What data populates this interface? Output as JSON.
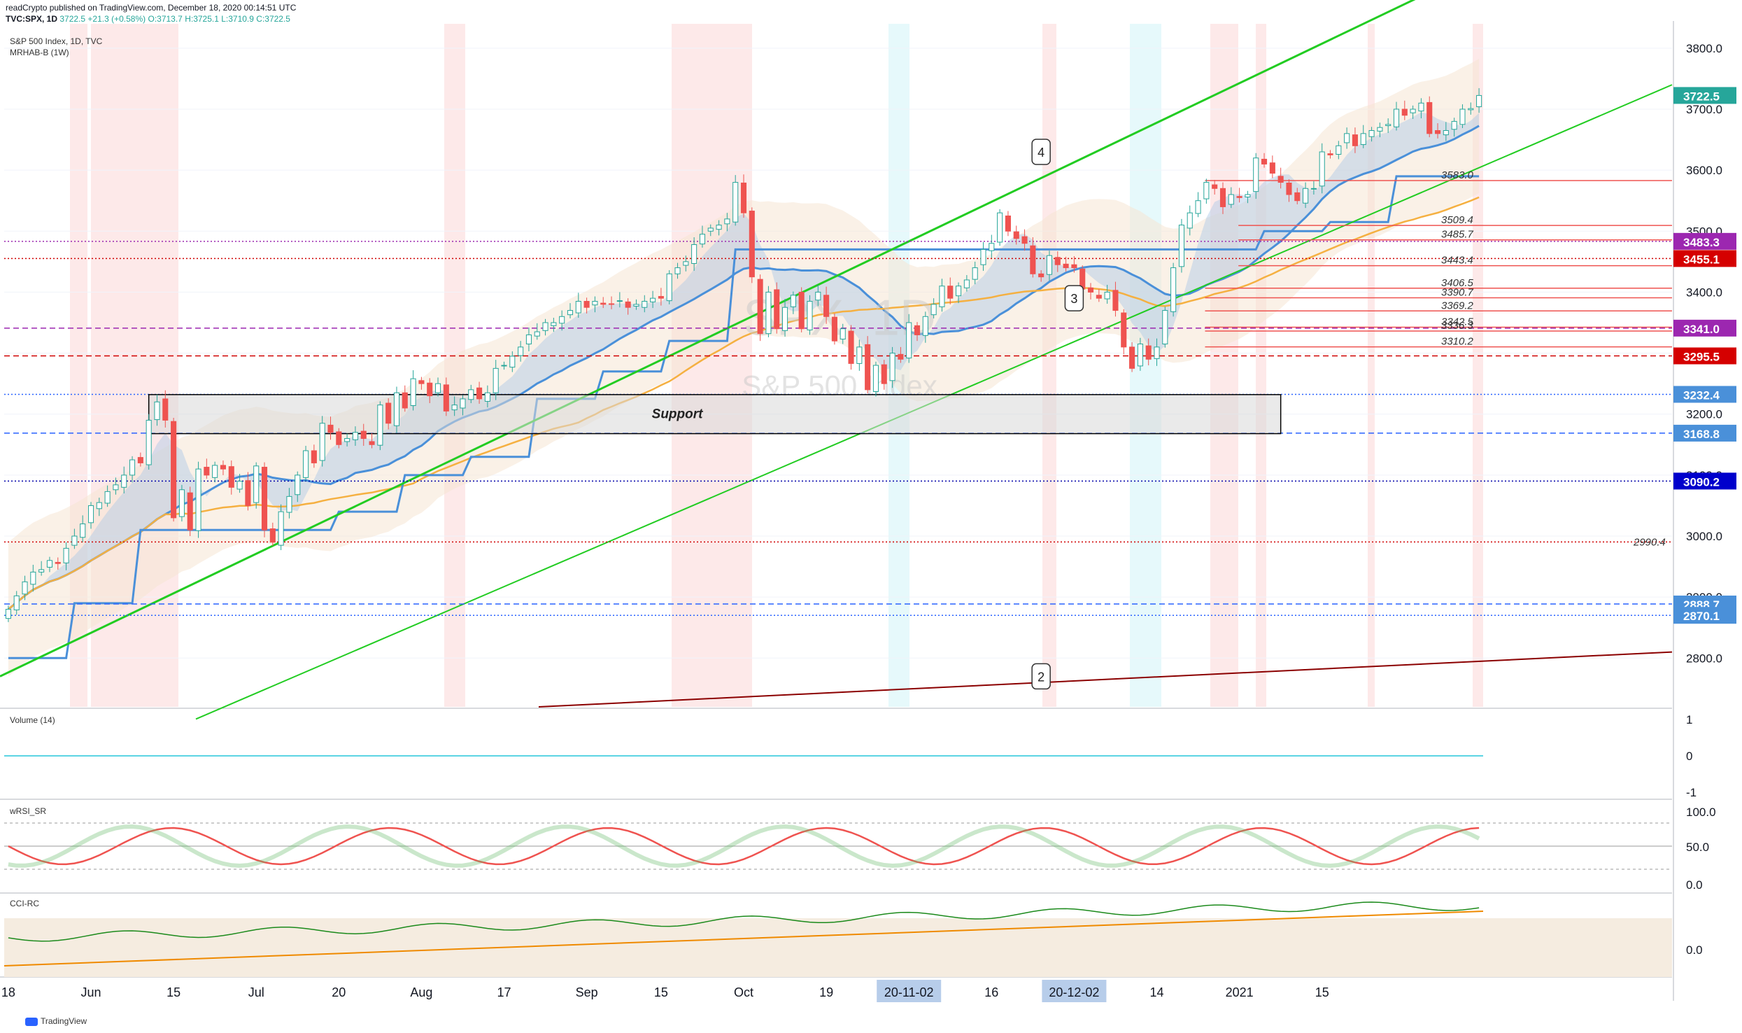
{
  "header": {
    "line1": "readCrypto published on TradingView.com, December 18, 2020 00:14:51 UTC",
    "symbol": "TVC:SPX, 1D",
    "last": "3722.5",
    "change": "+21.3 (+0.58%)",
    "ohlc": "O:3713.7 H:3725.1 L:3710.9 C:3722.5"
  },
  "chart_title": "S&P 500 Index, 1D, TVC",
  "indicator_main": "MRHAB-B (1W)",
  "watermark_symbol": "SPX, 1D",
  "watermark_name": "S&P 500 Index",
  "panes": {
    "volume": "Volume (14)",
    "rsi": "wRSI_SR",
    "cci": "CCI-RC"
  },
  "footer_brand": "TradingView",
  "colors": {
    "up": "#26a69a",
    "down": "#ef5350",
    "blue_line": "#4a90d9",
    "orange_line": "#f5b041",
    "purple_line": "#9b59b6",
    "trend_green": "#22cc22",
    "trend_red": "#8b0000"
  },
  "chart_data": {
    "type": "candlestick",
    "ylim": [
      2720,
      3840
    ],
    "price_ticks": [
      2800,
      2900,
      3000,
      3100,
      3200,
      3300,
      3400,
      3500,
      3600,
      3700,
      3800
    ],
    "price_tick_labels": [
      "2800.0",
      "2900.0",
      "3000.0",
      "3100.0",
      "3200.0",
      "3300.0",
      "3400.0",
      "3500.0",
      "3600.0",
      "3700.0",
      "3800.0"
    ],
    "x_ticks": [
      "18",
      "Jun",
      "15",
      "Jul",
      "20",
      "Aug",
      "17",
      "Sep",
      "15",
      "Oct",
      "19",
      "20-11-02",
      "16",
      "20-12-02",
      "14",
      "2021",
      "15"
    ],
    "x_tick_positions": [
      0,
      10,
      20,
      30,
      40,
      50,
      60,
      70,
      79,
      89,
      99,
      109,
      119,
      129,
      139,
      149,
      159
    ],
    "closes": [
      2880,
      2902,
      2925,
      2941,
      2945,
      2960,
      2955,
      2980,
      3000,
      3020,
      3050,
      3055,
      3073,
      3084,
      3100,
      3125,
      3120,
      3190,
      3220,
      3190,
      3030,
      3076,
      3010,
      3110,
      3100,
      3116,
      3110,
      3080,
      3090,
      3050,
      3115,
      3010,
      2990,
      3040,
      3065,
      3100,
      3140,
      3120,
      3185,
      3170,
      3150,
      3160,
      3170,
      3160,
      3150,
      3215,
      3185,
      3235,
      3210,
      3258,
      3250,
      3230,
      3250,
      3205,
      3215,
      3225,
      3240,
      3225,
      3235,
      3275,
      3280,
      3295,
      3310,
      3330,
      3335,
      3350,
      3350,
      3360,
      3370,
      3385,
      3375,
      3385,
      3380,
      3380,
      3386,
      3375,
      3380,
      3385,
      3390,
      3390,
      3430,
      3440,
      3450,
      3478,
      3495,
      3505,
      3510,
      3520,
      3580,
      3530,
      3425,
      3332,
      3400,
      3340,
      3375,
      3395,
      3340,
      3385,
      3400,
      3360,
      3320,
      3340,
      3283,
      3310,
      3240,
      3280,
      3250,
      3300,
      3290,
      3350,
      3330,
      3360,
      3380,
      3410,
      3390,
      3410,
      3420,
      3440,
      3470,
      3480,
      3530,
      3500,
      3488,
      3480,
      3430,
      3425,
      3460,
      3445,
      3440,
      3440,
      3405,
      3400,
      3390,
      3400,
      3370,
      3310,
      3275,
      3315,
      3290,
      3310,
      3370,
      3440,
      3510,
      3530,
      3550,
      3580,
      3570,
      3540,
      3560,
      3555,
      3560,
      3620,
      3610,
      3595,
      3580,
      3560,
      3550,
      3570,
      3570,
      3630,
      3625,
      3640,
      3660,
      3640,
      3660,
      3665,
      3670,
      3675,
      3700,
      3690,
      3700,
      3710,
      3660,
      3660,
      3665,
      3680,
      3700,
      3701,
      3722.5
    ],
    "horizontal_levels": [
      {
        "value": 3722.5,
        "label": "3722.5",
        "color": "#26a69a",
        "style": "none"
      },
      {
        "value": 3583.0,
        "label": "3583.0",
        "color": "#ef5350",
        "style": "solid",
        "from": 0.72
      },
      {
        "value": 3509.4,
        "label": "3509.4",
        "color": "#ef5350",
        "style": "solid",
        "from": 0.74
      },
      {
        "value": 3485.7,
        "label": "3485.7",
        "color": "#ef5350",
        "style": "solid",
        "from": 0.74
      },
      {
        "value": 3483.3,
        "label": "3483.3",
        "color": "#9c27b0",
        "style": "dotted",
        "from": 0
      },
      {
        "value": 3455.1,
        "label": "3455.1",
        "color": "#d00000",
        "style": "dotted",
        "from": 0
      },
      {
        "value": 3443.4,
        "label": "3443.4",
        "color": "#ef5350",
        "style": "solid",
        "from": 0.74
      },
      {
        "value": 3406.5,
        "label": "3406.5",
        "color": "#ef5350",
        "style": "solid",
        "from": 0.72
      },
      {
        "value": 3390.7,
        "label": "3390.7",
        "color": "#ef5350",
        "style": "solid",
        "from": 0.72
      },
      {
        "value": 3369.2,
        "label": "3369.2",
        "color": "#ef5350",
        "style": "solid",
        "from": 0.72
      },
      {
        "value": 3342.5,
        "label": "3342.5",
        "color": "#ef5350",
        "style": "solid",
        "from": 0.72
      },
      {
        "value": 3341.0,
        "label": "3341.0",
        "color": "#9c27b0",
        "style": "dashed",
        "from": 0
      },
      {
        "value": 3336.3,
        "label": "3336.3",
        "color": "#ef5350",
        "style": "solid",
        "from": 0.72
      },
      {
        "value": 3310.2,
        "label": "3310.2",
        "color": "#ef5350",
        "style": "solid",
        "from": 0.72
      },
      {
        "value": 3295.5,
        "label": "3295.5",
        "color": "#d00000",
        "style": "dashed",
        "from": 0
      },
      {
        "value": 3232.4,
        "label": "3232.4",
        "color": "#2962ff",
        "style": "dotted",
        "from": 0
      },
      {
        "value": 3168.8,
        "label": "3168.8",
        "color": "#2962ff",
        "style": "dashed",
        "from": 0
      },
      {
        "value": 3090.2,
        "label": "3090.2",
        "color": "#0000aa",
        "style": "dotted",
        "from": 0
      },
      {
        "value": 2990.4,
        "label": "2990.4",
        "color": "#d00000",
        "style": "dotted",
        "from": 0
      },
      {
        "value": 2888.7,
        "label": "2888.7",
        "color": "#2962ff",
        "style": "dashed",
        "from": 0
      },
      {
        "value": 2870.1,
        "label": "2870.1",
        "color": "#2962ff",
        "style": "dotted",
        "from": 0
      }
    ],
    "price_badges": [
      {
        "value": 3722.5,
        "label": "3722.5",
        "bg": "#26a69a"
      },
      {
        "value": 3483.3,
        "label": "3483.3",
        "bg": "#9c27b0"
      },
      {
        "value": 3455.1,
        "label": "3455.1",
        "bg": "#d50000"
      },
      {
        "value": 3341.0,
        "label": "3341.0",
        "bg": "#9c27b0"
      },
      {
        "value": 3295.5,
        "label": "3295.5",
        "bg": "#d50000"
      },
      {
        "value": 3232.4,
        "label": "3232.4",
        "bg": "#4a90d9"
      },
      {
        "value": 3168.8,
        "label": "3168.8",
        "bg": "#4a90d9"
      },
      {
        "value": 3090.2,
        "label": "3090.2",
        "bg": "#0000cc"
      },
      {
        "value": 2888.7,
        "label": "2888.7",
        "bg": "#4a90d9"
      },
      {
        "value": 2870.1,
        "label": "2870.1",
        "bg": "#4a90d9"
      }
    ],
    "support_zone": {
      "label": "Support",
      "top": 3232,
      "bottom": 3168,
      "from_bar": 17,
      "to_bar": 154
    },
    "callouts": [
      {
        "label": "4",
        "bar": 125,
        "value": 3630
      },
      {
        "label": "3",
        "bar": 129,
        "value": 3390
      },
      {
        "label": "2",
        "bar": 125,
        "value": 2770
      }
    ],
    "volume_axis": [
      "1",
      "0",
      "-1"
    ],
    "rsi_axis": [
      "100.0",
      "50.0",
      "0.0"
    ],
    "cci_axis": [
      "0.0"
    ]
  }
}
